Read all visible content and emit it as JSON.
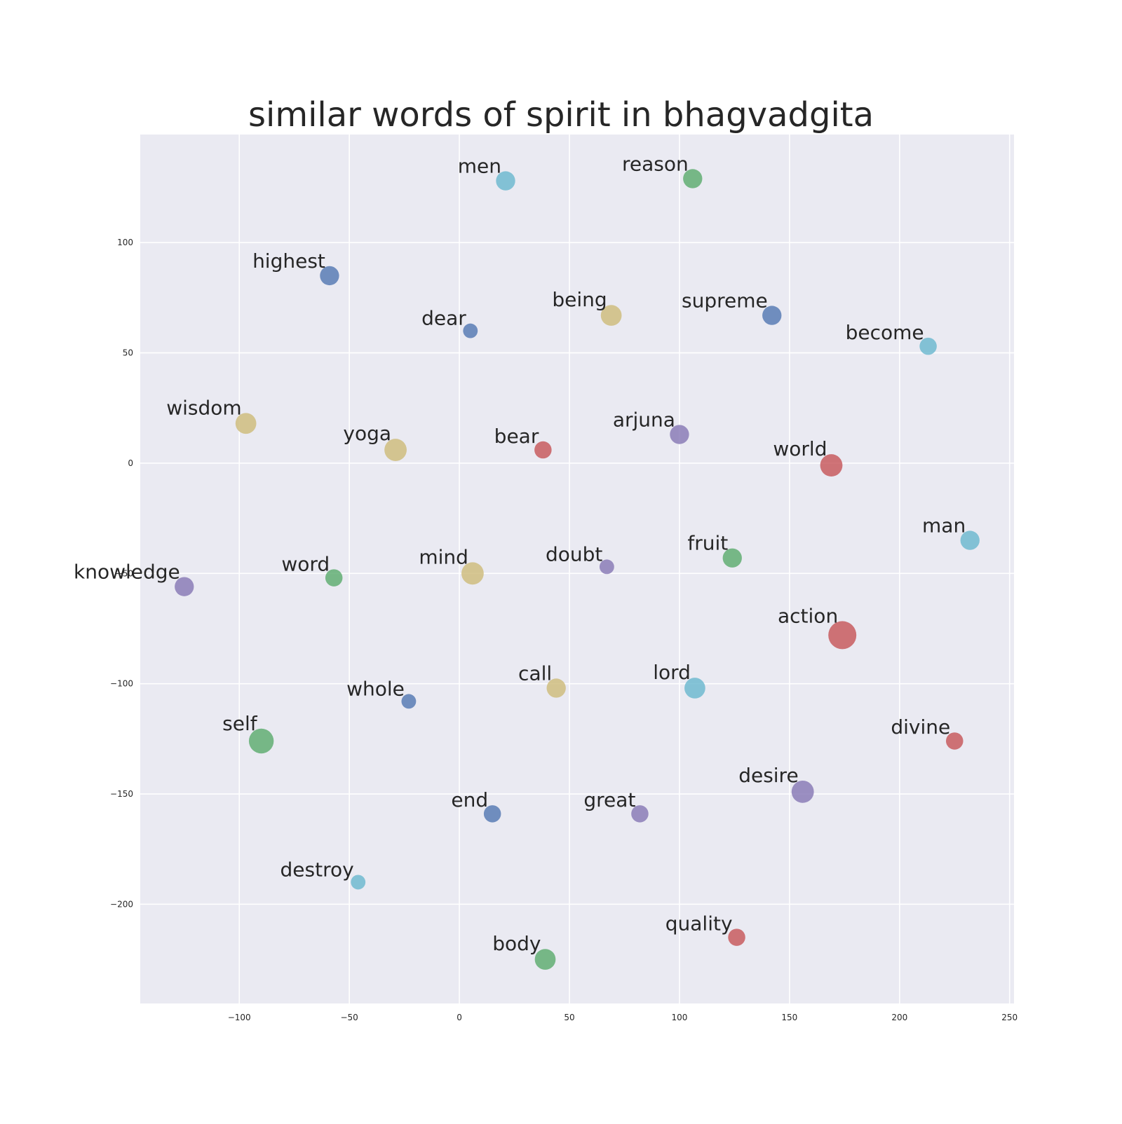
{
  "chart_data": {
    "type": "scatter",
    "title": "similar words of spirit in bhagvadgita",
    "xlabel": "",
    "ylabel": "",
    "xlim": [
      -145,
      252
    ],
    "ylim": [
      -245,
      149
    ],
    "xticks": [
      -100,
      -50,
      0,
      50,
      100,
      150,
      200,
      250
    ],
    "yticks": [
      -200,
      -150,
      -100,
      -50,
      0,
      50,
      100
    ],
    "xtick_labels": [
      "−100",
      "−50",
      "0",
      "50",
      "100",
      "150",
      "200",
      "250"
    ],
    "ytick_labels": [
      "−200",
      "−150",
      "−100",
      "−50",
      "0",
      "50",
      "100"
    ],
    "grid": true,
    "legend": "none",
    "colors": {
      "blue": "#4c72b0",
      "green": "#55a868",
      "red": "#c44e52",
      "purple": "#8172b2",
      "yellow": "#ccb974",
      "cyan": "#64b5cd",
      "background": "#eaeaf2",
      "grid": "#ffffff"
    },
    "points": [
      {
        "word": "men",
        "x": 21,
        "y": 128,
        "size": 3,
        "color": "cyan"
      },
      {
        "word": "reason",
        "x": 106,
        "y": 129,
        "size": 3,
        "color": "green"
      },
      {
        "word": "highest",
        "x": -59,
        "y": 85,
        "size": 3,
        "color": "blue"
      },
      {
        "word": "dear",
        "x": 5,
        "y": 60,
        "size": 1,
        "color": "blue"
      },
      {
        "word": "being",
        "x": 69,
        "y": 67,
        "size": 4,
        "color": "yellow"
      },
      {
        "word": "supreme",
        "x": 142,
        "y": 67,
        "size": 3,
        "color": "blue"
      },
      {
        "word": "become",
        "x": 213,
        "y": 53,
        "size": 2,
        "color": "cyan"
      },
      {
        "word": "wisdom",
        "x": -97,
        "y": 18,
        "size": 4,
        "color": "yellow"
      },
      {
        "word": "yoga",
        "x": -29,
        "y": 6,
        "size": 5,
        "color": "yellow"
      },
      {
        "word": "bear",
        "x": 38,
        "y": 6,
        "size": 2,
        "color": "red"
      },
      {
        "word": "arjuna",
        "x": 100,
        "y": 13,
        "size": 3,
        "color": "purple"
      },
      {
        "word": "world",
        "x": 169,
        "y": -1,
        "size": 5,
        "color": "red"
      },
      {
        "word": "man",
        "x": 232,
        "y": -35,
        "size": 3,
        "color": "cyan"
      },
      {
        "word": "knowledge",
        "x": -125,
        "y": -56,
        "size": 3,
        "color": "purple"
      },
      {
        "word": "word",
        "x": -57,
        "y": -52,
        "size": 2,
        "color": "green"
      },
      {
        "word": "mind",
        "x": 6,
        "y": -50,
        "size": 5,
        "color": "yellow"
      },
      {
        "word": "doubt",
        "x": 67,
        "y": -47,
        "size": 1,
        "color": "purple"
      },
      {
        "word": "fruit",
        "x": 124,
        "y": -43,
        "size": 3,
        "color": "green"
      },
      {
        "word": "action",
        "x": 174,
        "y": -78,
        "size": 10,
        "color": "red"
      },
      {
        "word": "whole",
        "x": -23,
        "y": -108,
        "size": 1,
        "color": "blue"
      },
      {
        "word": "call",
        "x": 44,
        "y": -102,
        "size": 3,
        "color": "yellow"
      },
      {
        "word": "lord",
        "x": 107,
        "y": -102,
        "size": 4,
        "color": "cyan"
      },
      {
        "word": "self",
        "x": -90,
        "y": -126,
        "size": 7,
        "color": "green"
      },
      {
        "word": "divine",
        "x": 225,
        "y": -126,
        "size": 2,
        "color": "red"
      },
      {
        "word": "desire",
        "x": 156,
        "y": -149,
        "size": 5,
        "color": "purple"
      },
      {
        "word": "end",
        "x": 15,
        "y": -159,
        "size": 2,
        "color": "blue"
      },
      {
        "word": "great",
        "x": 82,
        "y": -159,
        "size": 2,
        "color": "purple"
      },
      {
        "word": "destroy",
        "x": -46,
        "y": -190,
        "size": 1,
        "color": "cyan"
      },
      {
        "word": "quality",
        "x": 126,
        "y": -215,
        "size": 2,
        "color": "red"
      },
      {
        "word": "body",
        "x": 39,
        "y": -225,
        "size": 4,
        "color": "green"
      }
    ]
  }
}
